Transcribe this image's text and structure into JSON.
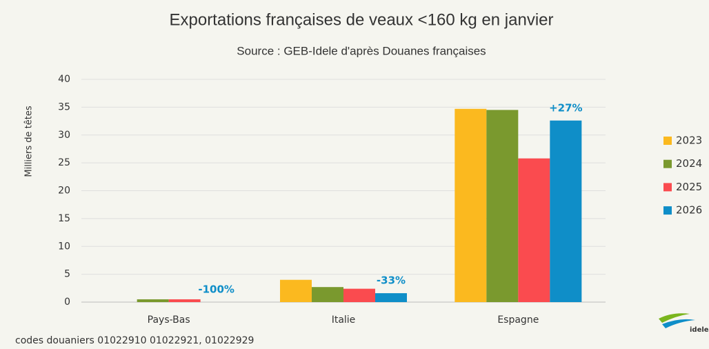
{
  "chart_data": {
    "type": "bar",
    "title": "Exportations françaises de veaux <160 kg en janvier",
    "subtitle": "Source : GEB-Idele d'après Douanes françaises",
    "y_label": "Milliers de têtes",
    "categories": [
      "Pays-Bas",
      "Italie",
      "Espagne"
    ],
    "series": [
      {
        "name": "2023",
        "color": "#fbb91f",
        "values": [
          0,
          4.0,
          34.7
        ]
      },
      {
        "name": "2024",
        "color": "#7a992e",
        "values": [
          0.5,
          2.7,
          34.5
        ]
      },
      {
        "name": "2025",
        "color": "#fa4b4f",
        "values": [
          0.5,
          2.4,
          25.8
        ]
      },
      {
        "name": "2026",
        "color": "#0f8ec8",
        "values": [
          0,
          1.6,
          32.6
        ]
      }
    ],
    "annotations": [
      "-100%",
      "-33%",
      "+27%"
    ],
    "ylim": [
      0,
      40
    ],
    "yticks": [
      0,
      5,
      10,
      15,
      20,
      25,
      30,
      35,
      40
    ],
    "grid": true,
    "legend": "right",
    "note": "codes douaniers 01022910 01022921, 01022929",
    "logo": "idele"
  }
}
